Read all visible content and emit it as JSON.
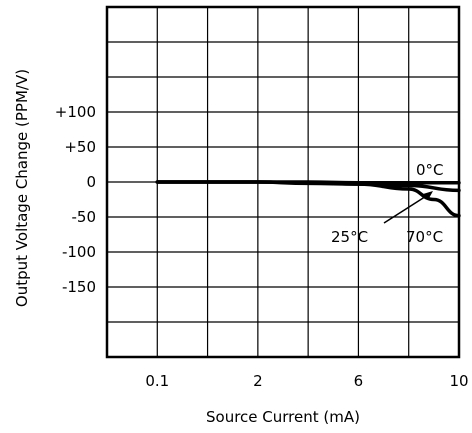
{
  "chart_data": {
    "type": "line",
    "title": "",
    "xlabel": "Source Current (mA)",
    "ylabel": "Output Voltage Change (PPM/V)",
    "x_ticks": [
      "0.1",
      "2",
      "6",
      "10"
    ],
    "y_ticks": [
      "+100",
      "+50",
      "0",
      "-50",
      "-100",
      "-150"
    ],
    "ylim": [
      -250,
      250
    ],
    "grid": true,
    "series": [
      {
        "name": "0°C",
        "x": [
          0.1,
          2,
          4,
          6,
          8,
          10
        ],
        "y": [
          0,
          0,
          0,
          -1,
          -1,
          -1
        ]
      },
      {
        "name": "25°C",
        "x": [
          0.1,
          2,
          4,
          6,
          8,
          10
        ],
        "y": [
          0,
          0,
          -2,
          -3,
          -5,
          -12
        ]
      },
      {
        "name": "70°C",
        "x": [
          0.1,
          2,
          4,
          6,
          8,
          9,
          10
        ],
        "y": [
          0,
          0,
          -1,
          -3,
          -10,
          -25,
          -48
        ]
      }
    ],
    "annotations": [
      {
        "text": "0°C"
      },
      {
        "text": "25°C"
      },
      {
        "text": "70°C"
      }
    ],
    "colors": {
      "line": "#000000",
      "grid": "#000000",
      "background": "#ffffff"
    }
  }
}
